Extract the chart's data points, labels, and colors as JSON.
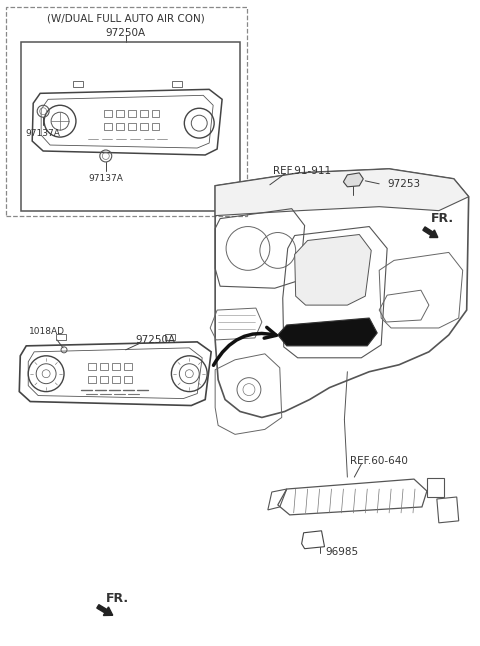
{
  "bg_color": "#ffffff",
  "line_color": "#444444",
  "labels": {
    "w_dual": "(W/DUAL FULL AUTO AIR CON)",
    "97250A_top": "97250A",
    "97137A_left": "97137A",
    "97137A_bottom": "97137A",
    "ref_91_911": "REF.91-911",
    "97253": "97253",
    "FR_top": "FR.",
    "1018AD": "1018AD",
    "97250A_mid": "97250A",
    "ref_60_640": "REF.60-640",
    "96985": "96985",
    "FR_bottom": "FR."
  },
  "figsize": [
    4.8,
    6.46
  ],
  "dpi": 100
}
